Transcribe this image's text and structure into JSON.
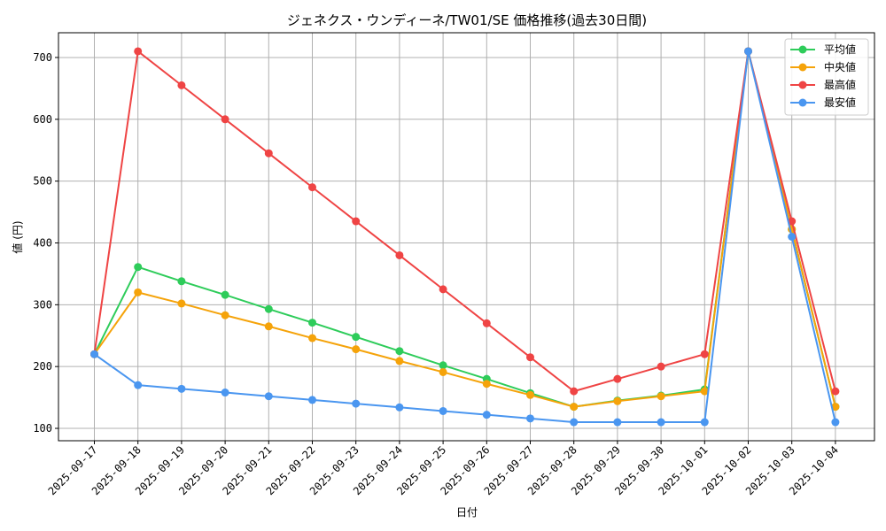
{
  "chart_data": {
    "type": "line",
    "title": "ジェネクス・ウンディーネ/TW01/SE 価格推移(過去30日間)",
    "xlabel": "日付",
    "ylabel": "値 (円)",
    "ylim": [
      80,
      740
    ],
    "yticks": [
      100,
      200,
      300,
      400,
      500,
      600,
      700
    ],
    "grid": true,
    "legend_position": "top-right",
    "categories": [
      "2025-09-17",
      "2025-09-18",
      "2025-09-19",
      "2025-09-20",
      "2025-09-21",
      "2025-09-22",
      "2025-09-23",
      "2025-09-24",
      "2025-09-25",
      "2025-09-26",
      "2025-09-27",
      "2025-09-28",
      "2025-09-29",
      "2025-09-30",
      "2025-10-01",
      "2025-10-02",
      "2025-10-03",
      "2025-10-04"
    ],
    "series": [
      {
        "name": "平均値",
        "color": "#2ecc5a",
        "values": [
          220,
          361,
          338,
          316,
          293,
          271,
          248,
          225,
          202,
          180,
          157,
          135,
          145,
          153,
          163,
          710,
          422,
          135
        ]
      },
      {
        "name": "中央値",
        "color": "#f5a30a",
        "values": [
          220,
          320,
          302,
          283,
          265,
          246,
          228,
          209,
          191,
          172,
          154,
          135,
          144,
          152,
          160,
          710,
          422,
          135
        ]
      },
      {
        "name": "最高値",
        "color": "#ef4444",
        "values": [
          220,
          710,
          655,
          600,
          545,
          490,
          435,
          380,
          325,
          270,
          215,
          160,
          180,
          200,
          220,
          710,
          435,
          160
        ]
      },
      {
        "name": "最安値",
        "color": "#4a96f0",
        "values": [
          220,
          170,
          164,
          158,
          152,
          146,
          140,
          134,
          128,
          122,
          116,
          110,
          110,
          110,
          110,
          710,
          410,
          110
        ]
      }
    ]
  }
}
